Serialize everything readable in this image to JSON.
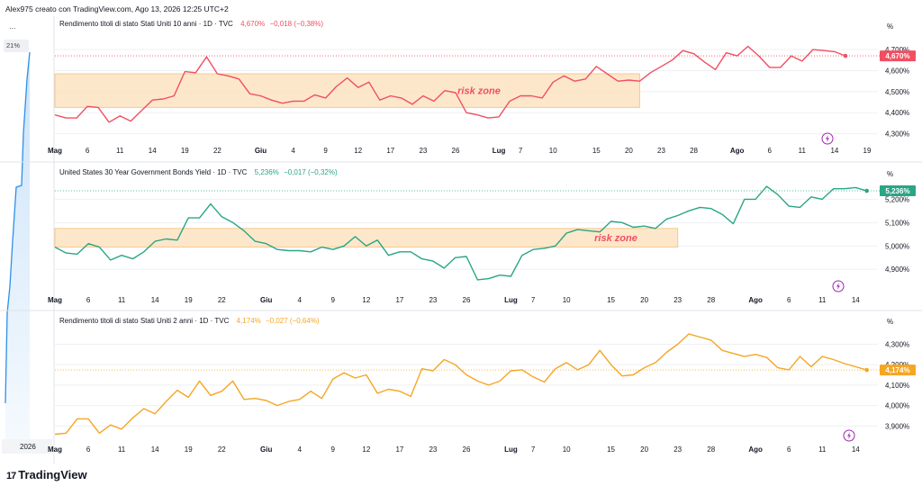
{
  "header": {
    "text": "Alex975 creato con TradingView.com, Ago 13, 2026 12:25 UTC+2"
  },
  "sidebar": {
    "menu": "...",
    "badge": "21%",
    "year": "2026"
  },
  "footer": {
    "logo_mark": "17",
    "logo_text": "TradingView"
  },
  "colors": {
    "red": "#f04f62",
    "green": "#2aa585",
    "orange": "#f5a623",
    "zone": "#fde3c2",
    "zone_border": "#f7c98c",
    "zone_text": "#f04f62",
    "grid": "#eef0f3"
  },
  "chart_data": [
    {
      "type": "line",
      "title": "Rendimento titoli di stato Stati Uniti 10 anni · 1D · TVC",
      "last_value": "4,670%",
      "change": "−0,018 (−0,38%)",
      "unit_label": "%",
      "price_tag": "4,670%",
      "y_ticks": [
        "4,700%",
        "4,600%",
        "4,500%",
        "4,400%",
        "4,300%"
      ],
      "y_tick_values": [
        4.7,
        4.6,
        4.5,
        4.4,
        4.3
      ],
      "ylim": [
        4.26,
        4.79
      ],
      "x_labels": [
        "Mag",
        "6",
        "11",
        "14",
        "19",
        "22",
        "Giu",
        "4",
        "9",
        "12",
        "17",
        "23",
        "26",
        "Lug",
        "7",
        "10",
        "15",
        "20",
        "23",
        "28",
        "Ago",
        "6",
        "11",
        "14",
        "19"
      ],
      "x_label_idx": [
        0,
        3,
        6,
        9,
        12,
        15,
        19,
        22,
        25,
        28,
        31,
        34,
        37,
        41,
        43,
        46,
        50,
        53,
        56,
        59,
        63,
        66,
        69,
        72,
        75
      ],
      "n_slots": 77,
      "values": [
        4.39,
        4.375,
        4.375,
        4.43,
        4.425,
        4.355,
        4.385,
        4.36,
        4.41,
        4.46,
        4.465,
        4.48,
        4.595,
        4.59,
        4.665,
        4.585,
        4.575,
        4.56,
        4.49,
        4.48,
        4.46,
        4.445,
        4.455,
        4.455,
        4.485,
        4.47,
        4.525,
        4.565,
        4.52,
        4.545,
        4.46,
        4.48,
        4.47,
        4.44,
        4.48,
        4.455,
        4.505,
        4.495,
        4.4,
        4.39,
        4.375,
        4.38,
        4.455,
        4.48,
        4.48,
        4.47,
        4.545,
        4.575,
        4.55,
        4.56,
        4.62,
        4.585,
        4.55,
        4.555,
        4.55,
        4.59,
        4.62,
        4.65,
        4.695,
        4.68,
        4.64,
        4.605,
        4.685,
        4.67,
        4.715,
        4.67,
        4.615,
        4.615,
        4.67,
        4.645,
        4.7,
        4.695,
        4.69,
        4.67
      ],
      "risk_zone": {
        "label": "risk zone",
        "from_idx": 0,
        "to_idx": 54,
        "low": 4.425,
        "high": 4.585
      }
    },
    {
      "type": "line",
      "title": "United States 30 Year Government Bonds Yield · 1D · TVC",
      "last_value": "5,236%",
      "change": "−0,017 (−0,32%)",
      "unit_label": "%",
      "price_tag": "5,236%",
      "y_ticks": [
        "5,200%",
        "5,100%",
        "5,000%",
        "4,900%"
      ],
      "y_tick_values": [
        5.2,
        5.1,
        5.0,
        4.9
      ],
      "ylim": [
        4.82,
        5.29
      ],
      "x_labels": [
        "Mag",
        "6",
        "11",
        "14",
        "19",
        "22",
        "Giu",
        "4",
        "9",
        "12",
        "17",
        "23",
        "26",
        "Lug",
        "7",
        "10",
        "15",
        "20",
        "23",
        "28",
        "Ago",
        "6",
        "11",
        "14"
      ],
      "x_label_idx": [
        0,
        3,
        6,
        9,
        12,
        15,
        19,
        22,
        25,
        28,
        31,
        34,
        37,
        41,
        43,
        46,
        50,
        53,
        56,
        59,
        63,
        66,
        69,
        72
      ],
      "n_slots": 75,
      "values": [
        4.995,
        4.97,
        4.965,
        5.01,
        4.995,
        4.94,
        4.96,
        4.945,
        4.975,
        5.02,
        5.03,
        5.025,
        5.12,
        5.12,
        5.18,
        5.125,
        5.1,
        5.065,
        5.02,
        5.01,
        4.985,
        4.98,
        4.98,
        4.975,
        4.995,
        4.985,
        5.0,
        5.04,
        5.0,
        5.025,
        4.96,
        4.975,
        4.975,
        4.945,
        4.935,
        4.905,
        4.95,
        4.955,
        4.855,
        4.86,
        4.875,
        4.87,
        4.96,
        4.985,
        4.99,
        5.0,
        5.055,
        5.07,
        5.065,
        5.06,
        5.105,
        5.1,
        5.08,
        5.085,
        5.075,
        5.115,
        5.13,
        5.15,
        5.165,
        5.16,
        5.135,
        5.095,
        5.2,
        5.2,
        5.255,
        5.22,
        5.17,
        5.165,
        5.21,
        5.2,
        5.245,
        5.245,
        5.25,
        5.236
      ],
      "risk_zone": {
        "label": "risk zone",
        "from_idx": 0,
        "to_idx": 56,
        "low": 4.995,
        "high": 5.075
      }
    },
    {
      "type": "line",
      "title": "Rendimento titoli di stato Stati Uniti 2 anni · 1D · TVC",
      "last_value": "4,174%",
      "change": "−0,027 (−0,64%)",
      "unit_label": "%",
      "price_tag": "4,174%",
      "y_ticks": [
        "4,300%",
        "4,200%",
        "4,100%",
        "4,000%",
        "3,900%"
      ],
      "y_tick_values": [
        4.3,
        4.2,
        4.1,
        4.0,
        3.9
      ],
      "ylim": [
        3.84,
        4.39
      ],
      "x_labels": [
        "Mag",
        "6",
        "11",
        "14",
        "19",
        "22",
        "Giu",
        "4",
        "9",
        "12",
        "17",
        "23",
        "26",
        "Lug",
        "7",
        "10",
        "15",
        "20",
        "23",
        "28",
        "Ago",
        "6",
        "11",
        "14"
      ],
      "x_label_idx": [
        0,
        3,
        6,
        9,
        12,
        15,
        19,
        22,
        25,
        28,
        31,
        34,
        37,
        41,
        43,
        46,
        50,
        53,
        56,
        59,
        63,
        66,
        69,
        72
      ],
      "n_slots": 75,
      "values": [
        3.86,
        3.865,
        3.935,
        3.935,
        3.865,
        3.905,
        3.885,
        3.94,
        3.985,
        3.96,
        4.02,
        4.075,
        4.04,
        4.12,
        4.05,
        4.07,
        4.12,
        4.03,
        4.035,
        4.025,
        4.0,
        4.02,
        4.03,
        4.07,
        4.035,
        4.13,
        4.16,
        4.135,
        4.15,
        4.06,
        4.08,
        4.07,
        4.045,
        4.18,
        4.17,
        4.225,
        4.2,
        4.15,
        4.12,
        4.1,
        4.12,
        4.17,
        4.175,
        4.14,
        4.115,
        4.18,
        4.21,
        4.175,
        4.2,
        4.27,
        4.2,
        4.145,
        4.15,
        4.185,
        4.21,
        4.26,
        4.3,
        4.35,
        4.335,
        4.32,
        4.27,
        4.255,
        4.24,
        4.25,
        4.235,
        4.185,
        4.175,
        4.24,
        4.19,
        4.24,
        4.225,
        4.205,
        4.19,
        4.174
      ],
      "risk_zone": null
    }
  ]
}
